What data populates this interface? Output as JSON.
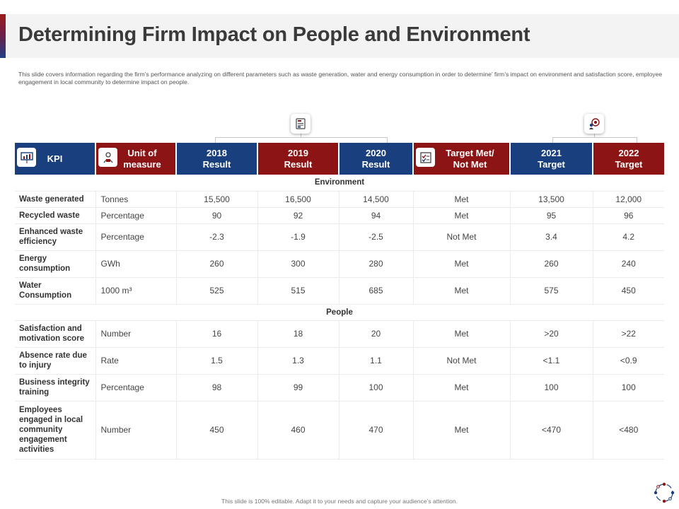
{
  "title": "Determining Firm Impact on People and Environment",
  "description": "This slide covers information regarding the firm’s performance analyzing on different parameters such as waste generation, water and energy consumption in order to determine’ firm’s impact on environment and satisfaction score, employee engagement in local community to determine impact on people.",
  "headers": {
    "kpi": "KPI",
    "unit_line1": "Unit of",
    "unit_line2": "measure",
    "r2018_line1": "2018",
    "r2018_line2": "Result",
    "r2019_line1": "2019",
    "r2019_line2": "Result",
    "r2020_line1": "2020",
    "r2020_line2": "Result",
    "met_line1": "Target Met/",
    "met_line2": "Not Met",
    "t2021_line1": "2021",
    "t2021_line2": "Target",
    "t2022_line1": "2022",
    "t2022_line2": "Target"
  },
  "sections": {
    "environment": "Environment",
    "people": "People"
  },
  "rows": [
    {
      "kpi": "Waste generated",
      "unit": "Tonnes",
      "r2018": "15,500",
      "r2019": "16,500",
      "r2020": "14,500",
      "met": "Met",
      "t2021": "13,500",
      "t2022": "12,000"
    },
    {
      "kpi": "Recycled waste",
      "unit": "Percentage",
      "r2018": "90",
      "r2019": "92",
      "r2020": "94",
      "met": "Met",
      "t2021": "95",
      "t2022": "96"
    },
    {
      "kpi": "Enhanced waste efficiency",
      "unit": "Percentage",
      "r2018": "-2.3",
      "r2019": "-1.9",
      "r2020": "-2.5",
      "met": "Not Met",
      "t2021": "3.4",
      "t2022": "4.2"
    },
    {
      "kpi": "Energy consumption",
      "unit": "GWh",
      "r2018": "260",
      "r2019": "300",
      "r2020": "280",
      "met": "Met",
      "t2021": "260",
      "t2022": "240"
    },
    {
      "kpi": "Water Consumption",
      "unit": "1000 m³",
      "r2018": "525",
      "r2019": "515",
      "r2020": "685",
      "met": "Met",
      "t2021": "575",
      "t2022": "450"
    },
    {
      "kpi": "Satisfaction and motivation score",
      "unit": "Number",
      "r2018": "16",
      "r2019": "18",
      "r2020": "20",
      "met": "Met",
      "t2021": ">20",
      "t2022": ">22"
    },
    {
      "kpi": "Absence rate due to injury",
      "unit": "Rate",
      "r2018": "1.5",
      "r2019": "1.3",
      "r2020": "1.1",
      "met": "Not Met",
      "t2021": "<1.1",
      "t2022": "<0.9"
    },
    {
      "kpi": "Business integrity training",
      "unit": "Percentage",
      "r2018": "98",
      "r2019": "99",
      "r2020": "100",
      "met": "Met",
      "t2021": "100",
      "t2022": "100"
    },
    {
      "kpi": "Employees engaged in local community engagement activities",
      "unit": "Number",
      "r2018": "450",
      "r2019": "460",
      "r2020": "470",
      "met": "Met",
      "t2021": "<470",
      "t2022": "<480"
    }
  ],
  "footer": "This slide is 100% editable. Adapt it to your needs and capture your audience’s attention.",
  "icons": [
    "results-icon",
    "target-icon",
    "presentation-icon",
    "team-icon",
    "checklist-icon",
    "brand-logo-icon"
  ],
  "colors": {
    "header_blue": "#1a3f7e",
    "header_red": "#8d1414",
    "title_text": "#3a3a3a"
  }
}
